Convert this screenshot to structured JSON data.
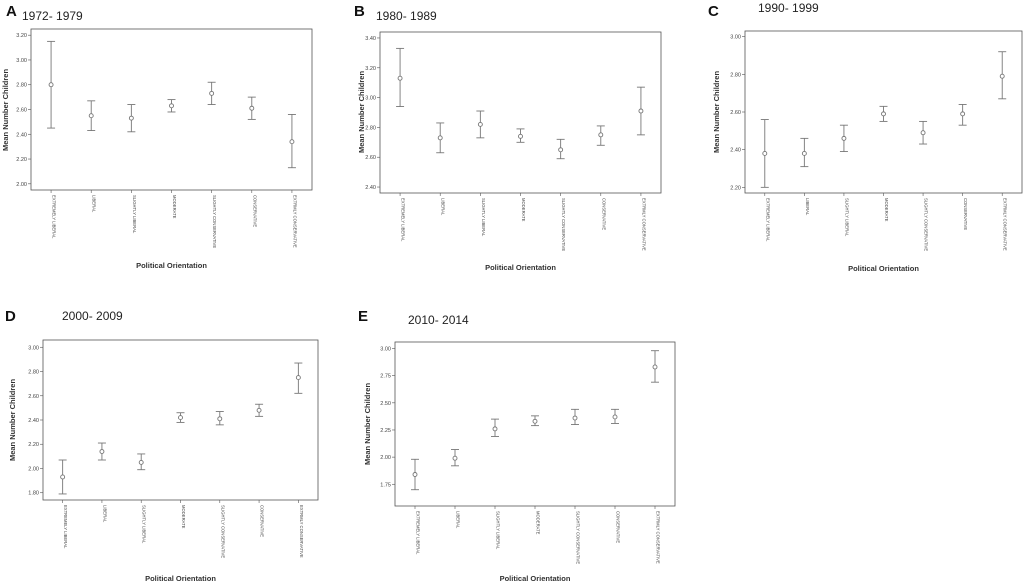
{
  "figure": {
    "line_color": "#777777",
    "marker_color": "#777777",
    "frame_color": "#555555"
  },
  "chart_data": [
    {
      "panel": "A",
      "title": "1972- 1979",
      "type": "scatter",
      "xlabel": "Political Orientation",
      "ylabel": "Mean Number Children",
      "categories": [
        "EXTREMELY LIBERAL",
        "LIBERAL",
        "SLIGHTLY LIBERAL",
        "MODERATE",
        "SLIGHTLY CONSERVATIVE",
        "CONSERVATIVE",
        "EXTRMLY CONSERVATIVE"
      ],
      "yticks": [
        2.0,
        2.2,
        2.4,
        2.6,
        2.8,
        3.0,
        3.2
      ],
      "ytick_labels": [
        "2.00",
        "2.20",
        "2.40",
        "2.60",
        "2.80",
        "3.00",
        "3.20"
      ],
      "ylim": [
        1.95,
        3.25
      ],
      "series": [
        {
          "values": [
            2.8,
            2.55,
            2.53,
            2.63,
            2.73,
            2.61,
            2.34
          ],
          "ci_low": [
            2.45,
            2.43,
            2.42,
            2.58,
            2.64,
            2.52,
            2.13
          ],
          "ci_high": [
            3.15,
            2.67,
            2.64,
            2.68,
            2.82,
            2.7,
            2.56
          ]
        }
      ],
      "grid": false,
      "legend": "none"
    },
    {
      "panel": "B",
      "title": "1980- 1989",
      "type": "scatter",
      "xlabel": "Political Orientation",
      "ylabel": "Mean Number Children",
      "categories": [
        "EXTREMELY LIBERAL",
        "LIBERAL",
        "SLIGHTLY LIBERAL",
        "MODERATE",
        "SLIGHTLY CONSERVATIVE",
        "CONSERVATIVE",
        "EXTRMLY CONSERVATIVE"
      ],
      "yticks": [
        2.4,
        2.6,
        2.8,
        3.0,
        3.2,
        3.4
      ],
      "ytick_labels": [
        "2.40",
        "2.60",
        "2.80",
        "3.00",
        "3.20",
        "3.40"
      ],
      "ylim": [
        2.36,
        3.44
      ],
      "series": [
        {
          "values": [
            3.13,
            2.73,
            2.82,
            2.74,
            2.65,
            2.75,
            2.91
          ],
          "ci_low": [
            2.94,
            2.63,
            2.73,
            2.7,
            2.59,
            2.68,
            2.75
          ],
          "ci_high": [
            3.33,
            2.83,
            2.91,
            2.79,
            2.72,
            2.81,
            3.07
          ]
        }
      ],
      "grid": false,
      "legend": "none"
    },
    {
      "panel": "C",
      "title": "1990- 1999",
      "type": "scatter",
      "xlabel": "Political Orientation",
      "ylabel": "Mean Number Children",
      "categories": [
        "EXTREMELY LIBERAL",
        "LIBERAL",
        "SLIGHTLY LIBERAL",
        "MODERATE",
        "SLIGHTLY CONSERVATIVE",
        "CONSERVATIVE",
        "EXTRMLY CONSERVATIVE"
      ],
      "yticks": [
        2.2,
        2.4,
        2.6,
        2.8,
        3.0
      ],
      "ytick_labels": [
        "2.20",
        "2.40",
        "2.60",
        "2.80",
        "3.00"
      ],
      "ylim": [
        2.17,
        3.03
      ],
      "series": [
        {
          "values": [
            2.38,
            2.38,
            2.46,
            2.59,
            2.49,
            2.59,
            2.79
          ],
          "ci_low": [
            2.2,
            2.31,
            2.39,
            2.55,
            2.43,
            2.53,
            2.67
          ],
          "ci_high": [
            2.56,
            2.46,
            2.53,
            2.63,
            2.55,
            2.64,
            2.92
          ]
        }
      ],
      "grid": false,
      "legend": "none"
    },
    {
      "panel": "D",
      "title": "2000- 2009",
      "type": "scatter",
      "xlabel": "Political Orientation",
      "ylabel": "Mean Number Children",
      "categories": [
        "EXTREMELY LIBERAL",
        "LIBERAL",
        "SLIGHTLY LIBERAL",
        "MODERATE",
        "SLIGHTLY CONSERVATIVE",
        "CONSERVATIVE",
        "EXTRMLY CONSERVATIVE"
      ],
      "yticks": [
        1.8,
        2.0,
        2.2,
        2.4,
        2.6,
        2.8,
        3.0
      ],
      "ytick_labels": [
        "1.80",
        "2.00",
        "2.20",
        "2.40",
        "2.60",
        "2.80",
        "3.00"
      ],
      "ylim": [
        1.74,
        3.06
      ],
      "series": [
        {
          "values": [
            1.93,
            2.14,
            2.05,
            2.42,
            2.41,
            2.48,
            2.75
          ],
          "ci_low": [
            1.79,
            2.07,
            1.99,
            2.38,
            2.36,
            2.43,
            2.62
          ],
          "ci_high": [
            2.07,
            2.21,
            2.12,
            2.46,
            2.47,
            2.53,
            2.87
          ]
        }
      ],
      "grid": false,
      "legend": "none"
    },
    {
      "panel": "E",
      "title": "2010- 2014",
      "type": "scatter",
      "xlabel": "Political Orientation",
      "ylabel": "Mean Number Children",
      "categories": [
        "EXTREMELY LIBERAL",
        "LIBERAL",
        "SLIGHTLY LIBERAL",
        "MODERATE",
        "SLIGHTLY CONSERVATIVE",
        "CONSERVATIVE",
        "EXTRMLY CONSERVATIVE"
      ],
      "yticks": [
        1.75,
        2.0,
        2.25,
        2.5,
        2.75,
        3.0
      ],
      "ytick_labels": [
        "1.75",
        "2.00",
        "2.25",
        "2.50",
        "2.75",
        "3.00"
      ],
      "ylim": [
        1.55,
        3.06
      ],
      "series": [
        {
          "values": [
            1.84,
            1.99,
            2.26,
            2.33,
            2.36,
            2.37,
            2.83
          ],
          "ci_low": [
            1.7,
            1.92,
            2.19,
            2.29,
            2.3,
            2.31,
            2.69
          ],
          "ci_high": [
            1.98,
            2.07,
            2.35,
            2.38,
            2.44,
            2.44,
            2.98
          ]
        }
      ],
      "grid": false,
      "legend": "none"
    }
  ]
}
